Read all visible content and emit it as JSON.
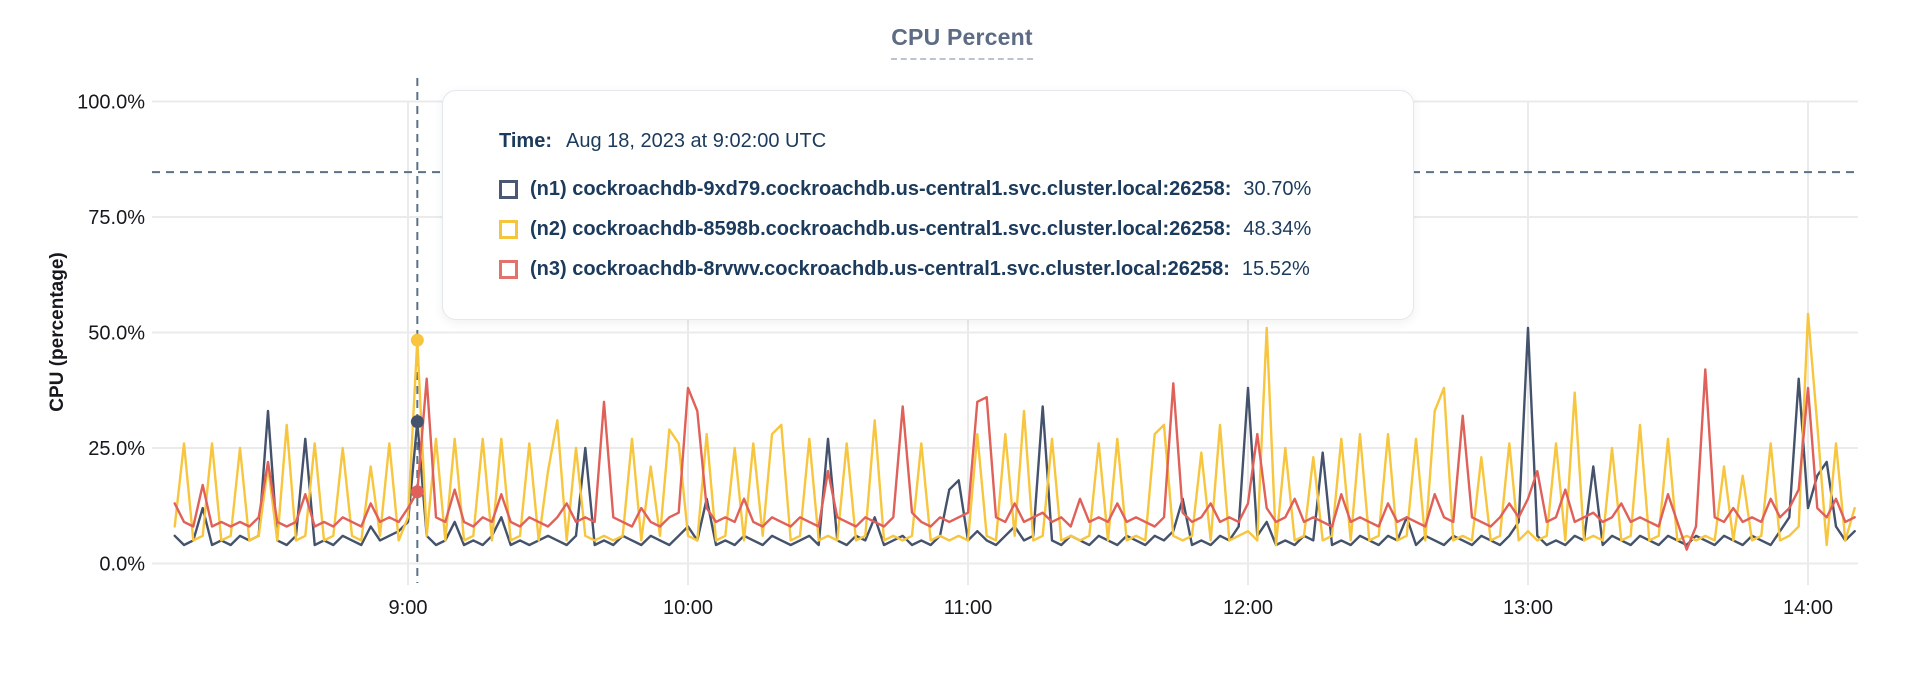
{
  "title": "CPU Percent",
  "axes": {
    "ylabel": "CPU (percentage)",
    "y_ticks": [
      {
        "label": "100.0%",
        "pct": 100
      },
      {
        "label": "75.0%",
        "pct": 75
      },
      {
        "label": "50.0%",
        "pct": 50
      },
      {
        "label": "25.0%",
        "pct": 25
      },
      {
        "label": "0.0%",
        "pct": 0
      }
    ],
    "x_ticks": [
      "9:00",
      "10:00",
      "11:00",
      "12:00",
      "13:00",
      "14:00"
    ]
  },
  "colors": {
    "n1": "#44526c",
    "n2": "#f7c63e",
    "n3": "#e0605a",
    "grid": "#ebebeb",
    "dashed": "#5b7186",
    "axis_text": "#16181d",
    "tooltip_text": "#1b3a5c",
    "title": "#5d6b85"
  },
  "tooltip": {
    "time_label": "Time:",
    "time_value": "Aug 18, 2023 at 9:02:00 UTC",
    "series": [
      {
        "name": "(n1) cockroachdb-9xd79.cockroachdb.us-central1.svc.cluster.local:26258:",
        "value": "30.70%",
        "color": "#4a5875"
      },
      {
        "name": "(n2) cockroachdb-8598b.cockroachdb.us-central1.svc.cluster.local:26258:",
        "value": "48.34%",
        "color": "#f5c53c"
      },
      {
        "name": "(n3) cockroachdb-8rvwv.cockroachdb.us-central1.svc.cluster.local:26258:",
        "value": "15.52%",
        "color": "#e2726b"
      }
    ]
  },
  "chart_data": {
    "type": "line",
    "title": "CPU Percent",
    "xlabel": "",
    "ylabel": "CPU (percentage)",
    "ylim": [
      0,
      100
    ],
    "grid": true,
    "x_start": "8:10",
    "x_end": "14:10",
    "step_minutes": 2,
    "start_offset_min": -50,
    "threshold_pct": 84.7,
    "hover": {
      "time": "9:02",
      "offset_min_from_9": 2,
      "index": 26,
      "points": [
        {
          "series": "n2",
          "value": 48.34
        },
        {
          "series": "n1",
          "value": 30.7
        },
        {
          "series": "n3",
          "value": 15.52
        }
      ]
    },
    "series": [
      {
        "id": "n1",
        "name": "(n1) cockroachdb-9xd79.cockroachdb.us-central1.svc.cluster.local:26258",
        "color": "#44526c",
        "values": [
          6,
          4,
          5,
          12,
          4,
          5,
          4,
          6,
          5,
          6,
          33,
          5,
          4,
          6,
          27,
          4,
          5,
          4,
          6,
          5,
          4,
          8,
          5,
          6,
          7,
          9,
          30.7,
          6,
          4,
          5,
          9,
          4,
          5,
          4,
          6,
          10,
          4,
          5,
          4,
          5,
          6,
          5,
          4,
          6,
          25,
          4,
          5,
          4,
          6,
          5,
          4,
          6,
          5,
          4,
          6,
          8,
          5,
          14,
          4,
          5,
          4,
          6,
          5,
          4,
          6,
          5,
          4,
          5,
          6,
          4,
          27,
          5,
          4,
          6,
          5,
          10,
          4,
          5,
          6,
          4,
          5,
          4,
          6,
          16,
          18,
          5,
          7,
          5,
          4,
          6,
          8,
          5,
          6,
          34,
          5,
          4,
          6,
          5,
          4,
          6,
          5,
          4,
          6,
          5,
          4,
          6,
          5,
          7,
          14,
          4,
          5,
          4,
          6,
          5,
          8,
          38,
          6,
          9,
          4,
          5,
          4,
          6,
          5,
          24,
          4,
          5,
          4,
          6,
          5,
          4,
          6,
          5,
          10,
          4,
          6,
          5,
          4,
          6,
          5,
          4,
          6,
          5,
          4,
          6,
          9,
          51,
          6,
          4,
          5,
          4,
          6,
          5,
          21,
          4,
          6,
          5,
          4,
          6,
          5,
          4,
          6,
          5,
          4,
          6,
          5,
          4,
          6,
          5,
          4,
          6,
          5,
          4,
          7,
          10,
          40,
          12,
          19,
          22,
          8,
          5,
          7
        ]
      },
      {
        "id": "n2",
        "name": "(n2) cockroachdb-8598b.cockroachdb.us-central1.svc.cluster.local:26258",
        "color": "#f7c63e",
        "values": [
          8,
          26,
          5,
          6,
          26,
          5,
          6,
          25,
          5,
          6,
          21,
          5,
          30,
          5,
          6,
          26,
          5,
          6,
          25,
          6,
          5,
          21,
          6,
          26,
          5,
          10,
          48.34,
          6,
          27,
          5,
          27,
          5,
          6,
          27,
          5,
          27,
          5,
          6,
          26,
          5,
          20,
          31,
          5,
          25,
          6,
          5,
          6,
          5,
          6,
          27,
          5,
          21,
          6,
          29,
          26,
          6,
          5,
          28,
          5,
          6,
          25,
          5,
          26,
          6,
          28,
          30,
          5,
          6,
          27,
          5,
          6,
          5,
          26,
          5,
          6,
          31,
          5,
          6,
          5,
          6,
          26,
          5,
          6,
          5,
          6,
          5,
          28,
          6,
          5,
          28,
          6,
          33,
          5,
          6,
          27,
          5,
          6,
          5,
          6,
          26,
          5,
          27,
          5,
          6,
          5,
          28,
          30,
          6,
          5,
          6,
          24,
          5,
          30,
          5,
          6,
          7,
          5,
          51,
          4,
          25,
          5,
          6,
          23,
          5,
          6,
          27,
          5,
          28,
          5,
          6,
          28,
          5,
          6,
          27,
          5,
          33,
          38,
          5,
          6,
          5,
          23,
          5,
          6,
          26,
          5,
          7,
          5,
          6,
          26,
          5,
          37,
          5,
          6,
          5,
          25,
          5,
          6,
          30,
          5,
          6,
          27,
          5,
          6,
          5,
          6,
          5,
          21,
          5,
          19,
          5,
          6,
          26,
          5,
          6,
          8,
          54,
          30,
          4,
          26,
          5,
          12
        ]
      },
      {
        "id": "n3",
        "name": "(n3) cockroachdb-8rvwv.cockroachdb.us-central1.svc.cluster.local:26258",
        "color": "#e0605a",
        "values": [
          13,
          9,
          8,
          17,
          8,
          9,
          8,
          9,
          8,
          10,
          22,
          9,
          8,
          9,
          15,
          8,
          9,
          8,
          10,
          9,
          8,
          13,
          9,
          10,
          9,
          12,
          15.52,
          40,
          10,
          9,
          16,
          9,
          8,
          10,
          9,
          15,
          9,
          8,
          10,
          9,
          8,
          10,
          13,
          9,
          10,
          9,
          35,
          10,
          9,
          8,
          12,
          9,
          8,
          10,
          11,
          38,
          33,
          12,
          9,
          10,
          9,
          14,
          9,
          8,
          10,
          9,
          8,
          10,
          9,
          8,
          20,
          10,
          9,
          8,
          10,
          9,
          8,
          10,
          34,
          11,
          9,
          8,
          10,
          9,
          10,
          11,
          35,
          36,
          10,
          9,
          13,
          9,
          10,
          11,
          9,
          10,
          8,
          14,
          9,
          10,
          9,
          13,
          9,
          10,
          9,
          8,
          10,
          39,
          11,
          9,
          10,
          13,
          9,
          10,
          9,
          13,
          28,
          12,
          9,
          10,
          14,
          9,
          10,
          9,
          8,
          15,
          9,
          10,
          9,
          8,
          13,
          9,
          10,
          9,
          8,
          15,
          10,
          9,
          32,
          10,
          9,
          8,
          10,
          13,
          10,
          14,
          20,
          9,
          10,
          16,
          9,
          10,
          11,
          9,
          10,
          13,
          9,
          10,
          9,
          8,
          15,
          9,
          3,
          8,
          42,
          10,
          9,
          12,
          9,
          10,
          9,
          14,
          10,
          12,
          16,
          38,
          12,
          10,
          14,
          9,
          10
        ]
      }
    ]
  }
}
